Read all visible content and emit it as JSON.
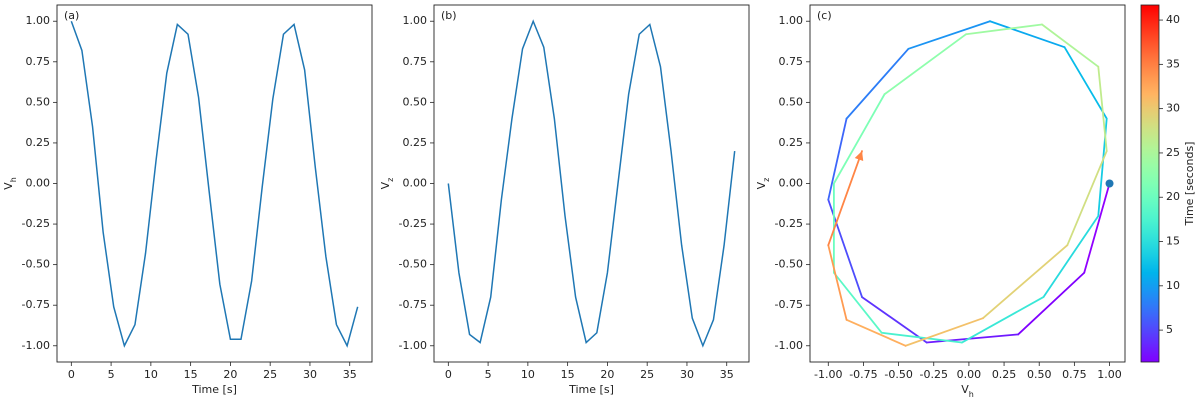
{
  "chart_data": [
    {
      "type": "line",
      "panel_label": "(a)",
      "color": "#1f77b4",
      "xlabel": "Time [s]",
      "ylabel": {
        "text": "V",
        "subscript": "h"
      },
      "x": [
        0,
        1.33,
        2.67,
        4,
        5.33,
        6.67,
        8,
        9.33,
        10.67,
        12,
        13.33,
        14.67,
        16,
        17.33,
        18.67,
        20,
        21.33,
        22.67,
        24,
        25.33,
        26.67,
        28,
        29.33,
        30.67,
        32,
        33.33,
        34.67,
        36
      ],
      "values": [
        1.0,
        0.82,
        0.35,
        -0.3,
        -0.76,
        -1.0,
        -0.87,
        -0.43,
        0.15,
        0.68,
        0.98,
        0.92,
        0.53,
        -0.05,
        -0.62,
        -0.96,
        -0.96,
        -0.6,
        -0.02,
        0.52,
        0.92,
        0.98,
        0.7,
        0.1,
        -0.45,
        -0.87,
        -1.0,
        -0.76
      ],
      "xlim": [
        -1.8,
        37.8
      ],
      "xticks": [
        0,
        5,
        10,
        15,
        20,
        25,
        30,
        35
      ],
      "ylim": [
        -1.1,
        1.1
      ],
      "yticks": [
        {
          "value": -1,
          "label": "-1.00"
        },
        -0.75,
        {
          "value": -0.5,
          "label": "-0.50"
        },
        -0.25,
        {
          "value": 0,
          "label": "0.00"
        },
        0.25,
        {
          "value": 0.5,
          "label": "0.50"
        },
        0.75,
        {
          "value": 1,
          "label": "1.00"
        }
      ]
    },
    {
      "type": "line",
      "panel_label": "(b)",
      "color": "#1f77b4",
      "xlabel": "Time [s]",
      "ylabel": {
        "text": "V",
        "subscript": "z"
      },
      "x": [
        0,
        1.33,
        2.67,
        4,
        5.33,
        6.67,
        8,
        9.33,
        10.67,
        12,
        13.33,
        14.67,
        16,
        17.33,
        18.67,
        20,
        21.33,
        22.67,
        24,
        25.33,
        26.67,
        28,
        29.33,
        30.67,
        32,
        33.33,
        34.67,
        36
      ],
      "values": [
        0,
        -0.55,
        -0.93,
        -0.98,
        -0.7,
        -0.1,
        0.4,
        0.83,
        1.0,
        0.84,
        0.4,
        -0.2,
        -0.7,
        -0.98,
        -0.92,
        -0.55,
        0.0,
        0.55,
        0.92,
        0.98,
        0.72,
        0.2,
        -0.38,
        -0.83,
        -1.0,
        -0.84,
        -0.38,
        0.2
      ],
      "xlim": [
        -1.8,
        37.8
      ],
      "xticks": [
        0,
        5,
        10,
        15,
        20,
        25,
        30,
        35
      ],
      "ylim": [
        -1.1,
        1.1
      ],
      "yticks": [
        {
          "value": -1,
          "label": "-1.00"
        },
        -0.75,
        {
          "value": -0.5,
          "label": "-0.50"
        },
        -0.25,
        {
          "value": 0,
          "label": "0.00"
        },
        0.25,
        {
          "value": 0.5,
          "label": "0.50"
        },
        0.75,
        {
          "value": 1,
          "label": "1.00"
        }
      ]
    },
    {
      "type": "trajectory",
      "panel_label": "(c)",
      "colormap": "rainbow",
      "marker_color": "#1f77b4",
      "xlabel": {
        "text": "V",
        "subscript": "h"
      },
      "ylabel": {
        "text": "V",
        "subscript": "z"
      },
      "x": [
        1.0,
        0.82,
        0.35,
        -0.3,
        -0.76,
        -1.0,
        -0.87,
        -0.43,
        0.15,
        0.68,
        0.98,
        0.92,
        0.53,
        -0.05,
        -0.62,
        -0.96,
        -0.96,
        -0.6,
        -0.02,
        0.52,
        0.92,
        0.98,
        0.7,
        0.1,
        -0.45,
        -0.87,
        -1.0,
        -0.76
      ],
      "values": [
        0,
        -0.55,
        -0.93,
        -0.98,
        -0.7,
        -0.1,
        0.4,
        0.83,
        1.0,
        0.84,
        0.4,
        -0.2,
        -0.7,
        -0.98,
        -0.92,
        -0.55,
        0.0,
        0.55,
        0.92,
        0.98,
        0.72,
        0.2,
        -0.38,
        -0.83,
        -1.0,
        -0.84,
        -0.38,
        0.2
      ],
      "time": [
        0,
        1.33,
        2.67,
        4,
        5.33,
        6.67,
        8,
        9.33,
        10.67,
        12,
        13.33,
        14.67,
        16,
        17.33,
        18.67,
        20,
        21.33,
        22.67,
        24,
        25.33,
        26.67,
        28,
        29.33,
        30.67,
        32,
        33.33,
        34.67,
        36
      ],
      "xlim": [
        -1.13,
        1.11
      ],
      "xticks": [
        {
          "value": -1,
          "label": "-1.00"
        },
        -0.75,
        {
          "value": -0.5,
          "label": "-0.50"
        },
        -0.25,
        {
          "value": 0,
          "label": "0.00"
        },
        0.25,
        {
          "value": 0.5,
          "label": "0.50"
        },
        0.75,
        {
          "value": 1,
          "label": "1.00"
        }
      ],
      "ylim": [
        -1.1,
        1.1
      ],
      "yticks": [
        {
          "value": -1,
          "label": "-1.00"
        },
        -0.75,
        {
          "value": -0.5,
          "label": "-0.50"
        },
        -0.25,
        {
          "value": 0,
          "label": "0.00"
        },
        0.25,
        {
          "value": 0.5,
          "label": "0.50"
        },
        0.75,
        {
          "value": 1,
          "label": "1.00"
        }
      ],
      "colorbar": {
        "label": "Time [seconds]",
        "lim": [
          1.4,
          41.7
        ],
        "ticks": [
          5,
          10,
          15,
          20,
          25,
          30,
          35,
          40
        ]
      }
    }
  ]
}
